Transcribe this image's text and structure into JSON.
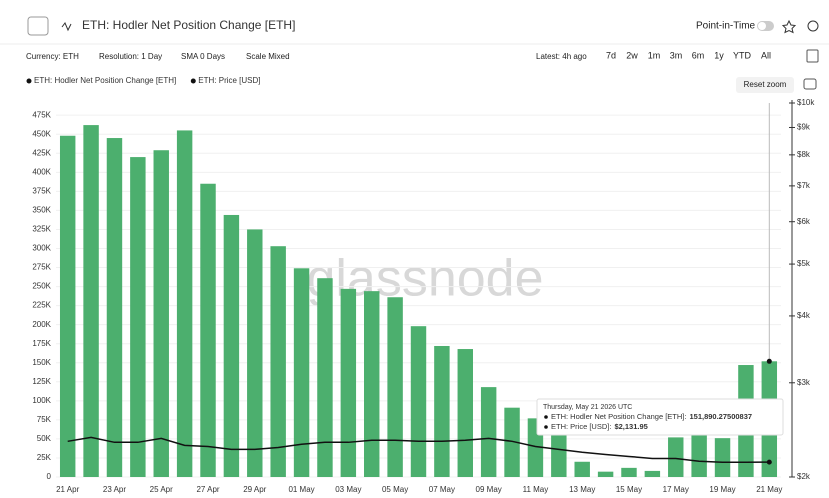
{
  "header": {
    "title": "ETH: Hodler Net Position Change [ETH]",
    "point_in_time": "Point-in-Time"
  },
  "toolbar": {
    "currency": "Currency: ETH",
    "resolution": "Resolution: 1 Day",
    "sma": "SMA 0 Days",
    "scale": "Scale Mixed",
    "latest": "Latest: 4h ago",
    "ranges": [
      "7d",
      "2w",
      "1m",
      "3m",
      "6m",
      "1y",
      "YTD",
      "All"
    ]
  },
  "reset_zoom": "Reset zoom",
  "watermark": "glassnode",
  "tooltip": {
    "title": "Thursday, May 21 2026 UTC",
    "rows": [
      {
        "name": "ETH: Hodler Net Position Change [ETH]:",
        "value": "151,890.27500837"
      },
      {
        "name": "ETH: Price [USD]:",
        "value": "$2,131.95"
      }
    ]
  },
  "chart_data": {
    "type": "combo",
    "categories": [
      "21 Apr",
      null,
      "23 Apr",
      null,
      "25 Apr",
      null,
      "27 Apr",
      null,
      "29 Apr",
      null,
      "01 May",
      null,
      "03 May",
      null,
      "05 May",
      null,
      "07 May",
      null,
      "09 May",
      null,
      "11 May",
      null,
      "13 May",
      null,
      "15 May",
      null,
      "17 May",
      null,
      "19 May",
      null,
      "21 May"
    ],
    "series": [
      {
        "name": "ETH: Hodler Net Position Change [ETH]",
        "type": "bar",
        "color": "#4caf6e",
        "values": [
          448000,
          462000,
          445000,
          420000,
          429000,
          455000,
          385000,
          344000,
          325000,
          303000,
          274000,
          261000,
          247000,
          244000,
          236000,
          198000,
          172000,
          168000,
          118000,
          91000,
          77000,
          59000,
          20000,
          7000,
          12000,
          8000,
          52000,
          62000,
          51000,
          147000,
          151890.27500837
        ]
      },
      {
        "name": "ETH: Price [USD]",
        "type": "line",
        "axis": "y2",
        "color": "#111111",
        "values": [
          2332,
          2372,
          2322,
          2322,
          2361,
          2292,
          2281,
          2253,
          2253,
          2271,
          2303,
          2322,
          2322,
          2343,
          2343,
          2332,
          2332,
          2343,
          2361,
          2332,
          2281,
          2253,
          2225,
          2203,
          2185,
          2166,
          2166,
          2140,
          2131,
          2131,
          2131.95
        ]
      }
    ],
    "ylim": [
      0,
      491000
    ],
    "yticks": [
      0,
      {
        "value": 25000,
        "label": "25K"
      },
      {
        "value": 50000,
        "label": "50K"
      },
      {
        "value": 75000,
        "label": "75K"
      },
      {
        "value": 100000,
        "label": "100K"
      },
      {
        "value": 125000,
        "label": "125K"
      },
      {
        "value": 150000,
        "label": "150K"
      },
      {
        "value": 175000,
        "label": "175K"
      },
      {
        "value": 200000,
        "label": "200K"
      },
      {
        "value": 225000,
        "label": "225K"
      },
      {
        "value": 250000,
        "label": "250K"
      },
      {
        "value": 275000,
        "label": "275K"
      },
      {
        "value": 300000,
        "label": "300K"
      },
      {
        "value": 325000,
        "label": "325K"
      },
      {
        "value": 350000,
        "label": "350K"
      },
      {
        "value": 375000,
        "label": "375K"
      },
      {
        "value": 400000,
        "label": "400K"
      },
      {
        "value": 425000,
        "label": "425K"
      },
      {
        "value": 450000,
        "label": "450K"
      },
      {
        "value": 475000,
        "label": "475K"
      }
    ],
    "y2lim": [
      2000,
      10000
    ],
    "y2scale": "log",
    "y2ticks": [
      {
        "value": 2000,
        "label": "$2k"
      },
      {
        "value": 3000,
        "label": "$3k"
      },
      {
        "value": 4000,
        "label": "$4k"
      },
      {
        "value": 5000,
        "label": "$5k"
      },
      {
        "value": 6000,
        "label": "$6k"
      },
      {
        "value": 7000,
        "label": "$7k"
      },
      {
        "value": 8000,
        "label": "$8k"
      },
      {
        "value": 9000,
        "label": "$9k"
      },
      {
        "value": 10000,
        "label": "$10k"
      }
    ],
    "grid": true
  }
}
